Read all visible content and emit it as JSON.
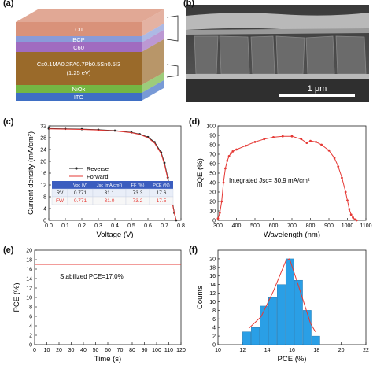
{
  "panel_labels": [
    "(a)",
    "(b)",
    "(c)",
    "(d)",
    "(e)",
    "(f)"
  ],
  "device_stack": {
    "layers": [
      {
        "label": "Cu",
        "color": "#d9927a"
      },
      {
        "label": "BCP",
        "color": "#8a9bd8"
      },
      {
        "label": "C60",
        "color": "#a06cc0"
      },
      {
        "label": "Cs0.1MA0.2FA0.7Pb0.5Sn0.5I3",
        "sub": "(1.25 eV)",
        "color": "#9a6a2a"
      },
      {
        "label": "NiOx",
        "color": "#74b743"
      },
      {
        "label": "ITO",
        "color": "#3f6fc4"
      }
    ]
  },
  "sem": {
    "scale_label": "1 μm"
  },
  "colors": {
    "forward": "#e53935",
    "reverse": "#222222",
    "bar": "#2a9fe6",
    "fit": "#e53935",
    "table_header": "#3b5dbf"
  },
  "chart_data": [
    {
      "id": "c",
      "type": "line",
      "xlabel": "Voltage (V)",
      "ylabel": "Current density (mA/cm²)",
      "xlim": [
        0.0,
        0.8
      ],
      "ylim": [
        0,
        32
      ],
      "xticks": [
        "0.0",
        "0.1",
        "0.2",
        "0.3",
        "0.4",
        "0.5",
        "0.6",
        "0.7",
        "0.8"
      ],
      "yticks": [
        "0",
        "4",
        "8",
        "12",
        "16",
        "20",
        "24",
        "28",
        "32"
      ],
      "legend": [
        "Reverse",
        "Forward"
      ],
      "series": [
        {
          "name": "Reverse",
          "x": [
            0.0,
            0.1,
            0.2,
            0.3,
            0.4,
            0.5,
            0.55,
            0.6,
            0.64,
            0.68,
            0.7,
            0.72,
            0.74,
            0.76,
            0.771
          ],
          "values": [
            31.1,
            31.0,
            30.9,
            30.7,
            30.4,
            29.8,
            29.2,
            28.2,
            26.5,
            23.0,
            19.5,
            14.5,
            8.5,
            2.5,
            0.0
          ]
        },
        {
          "name": "Forward",
          "x": [
            0.0,
            0.1,
            0.2,
            0.3,
            0.4,
            0.5,
            0.55,
            0.6,
            0.64,
            0.68,
            0.7,
            0.72,
            0.74,
            0.76,
            0.771
          ],
          "values": [
            31.0,
            30.9,
            30.8,
            30.6,
            30.3,
            29.7,
            29.1,
            28.0,
            26.2,
            22.6,
            19.0,
            14.0,
            8.0,
            2.2,
            0.0
          ]
        }
      ],
      "table": {
        "headers": [
          "",
          "Voc (V)",
          "Jsc (mA/cm²)",
          "FF (%)",
          "PCE (%)"
        ],
        "rows": [
          [
            "RV",
            "0.771",
            "31.1",
            "73.3",
            "17.6"
          ],
          [
            "FW",
            "0.771",
            "31.0",
            "73.2",
            "17.5"
          ]
        ]
      }
    },
    {
      "id": "d",
      "type": "line",
      "xlabel": "Wavelength (nm)",
      "ylabel": "EQE (%)",
      "xlim": [
        300,
        1100
      ],
      "ylim": [
        0,
        100
      ],
      "xticks": [
        "300",
        "400",
        "500",
        "600",
        "700",
        "800",
        "900",
        "1000",
        "1100"
      ],
      "yticks": [
        "0",
        "10",
        "20",
        "30",
        "40",
        "50",
        "60",
        "70",
        "80",
        "90",
        "100"
      ],
      "annotation": "Integrated Jsc= 30.9 mA/cm²",
      "x": [
        300,
        310,
        320,
        330,
        340,
        350,
        360,
        370,
        380,
        400,
        450,
        500,
        550,
        600,
        650,
        700,
        750,
        780,
        800,
        830,
        860,
        900,
        930,
        950,
        970,
        990,
        1000,
        1010,
        1020,
        1030,
        1040,
        1050
      ],
      "values": [
        2,
        8,
        20,
        40,
        55,
        63,
        68,
        71,
        73,
        75,
        79,
        83,
        86,
        88,
        89,
        89,
        86,
        82,
        84,
        83,
        80,
        74,
        66,
        57,
        45,
        30,
        21,
        12,
        6,
        3,
        1,
        0
      ]
    },
    {
      "id": "e",
      "type": "line",
      "xlabel": "Time (s)",
      "ylabel": "PCE (%)",
      "xlim": [
        0,
        120
      ],
      "ylim": [
        0,
        20
      ],
      "xticks": [
        "0",
        "10",
        "20",
        "30",
        "40",
        "50",
        "60",
        "70",
        "80",
        "90",
        "100",
        "110",
        "120"
      ],
      "yticks": [
        "0",
        "2",
        "4",
        "6",
        "8",
        "10",
        "12",
        "14",
        "16",
        "18",
        "20"
      ],
      "annotation": "Stabilized PCE=17.0%",
      "x": [
        0,
        120
      ],
      "values": [
        17.0,
        17.0
      ]
    },
    {
      "id": "f",
      "type": "bar",
      "xlabel": "PCE (%)",
      "ylabel": "Counts",
      "xlim": [
        10,
        22
      ],
      "ylim": [
        0,
        22
      ],
      "xticks": [
        "10",
        "12",
        "14",
        "16",
        "18",
        "20",
        "22"
      ],
      "yticks": [
        "0",
        "2",
        "4",
        "6",
        "8",
        "10",
        "12",
        "14",
        "16",
        "18",
        "20"
      ],
      "x": [
        12,
        12.7,
        13.4,
        14.1,
        14.8,
        15.5,
        16.2,
        16.9,
        17.6
      ],
      "values": [
        3,
        4,
        9,
        11,
        14,
        20,
        15,
        8,
        2
      ],
      "fit_x": [
        12.5,
        13.5,
        14.5,
        15.5,
        15.8,
        16.5,
        17.5,
        17.9
      ],
      "fit_y": [
        3.8,
        6.5,
        12.5,
        19.5,
        20.0,
        14.0,
        5.0,
        3.0
      ]
    }
  ]
}
